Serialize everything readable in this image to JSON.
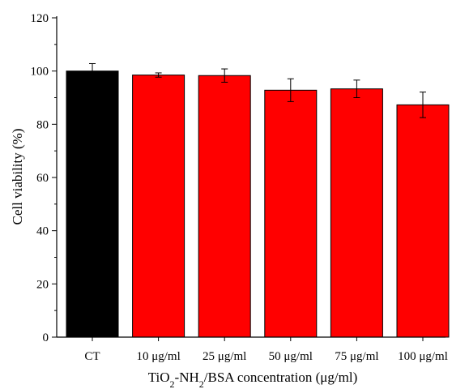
{
  "chart_data": {
    "type": "bar",
    "title": "",
    "xlabel_parts": [
      "TiO",
      "2",
      "-NH",
      "2",
      "/BSA concentration (μg/ml)"
    ],
    "ylabel": "Cell viability (%)",
    "ylim": [
      0,
      120
    ],
    "yticks": [
      0,
      20,
      40,
      60,
      80,
      100,
      120
    ],
    "categories": [
      "CT",
      "10 μg/ml",
      "25 μg/ml",
      "50 μg/ml",
      "75 μg/ml",
      "100 μg/ml"
    ],
    "values": [
      100.0,
      98.5,
      98.3,
      92.8,
      93.3,
      87.3
    ],
    "errors": [
      2.8,
      0.8,
      2.5,
      4.3,
      3.3,
      4.8
    ],
    "colors": [
      "#000000",
      "#ff0000",
      "#ff0000",
      "#ff0000",
      "#ff0000",
      "#ff0000"
    ],
    "grid": false,
    "legend": "none"
  }
}
